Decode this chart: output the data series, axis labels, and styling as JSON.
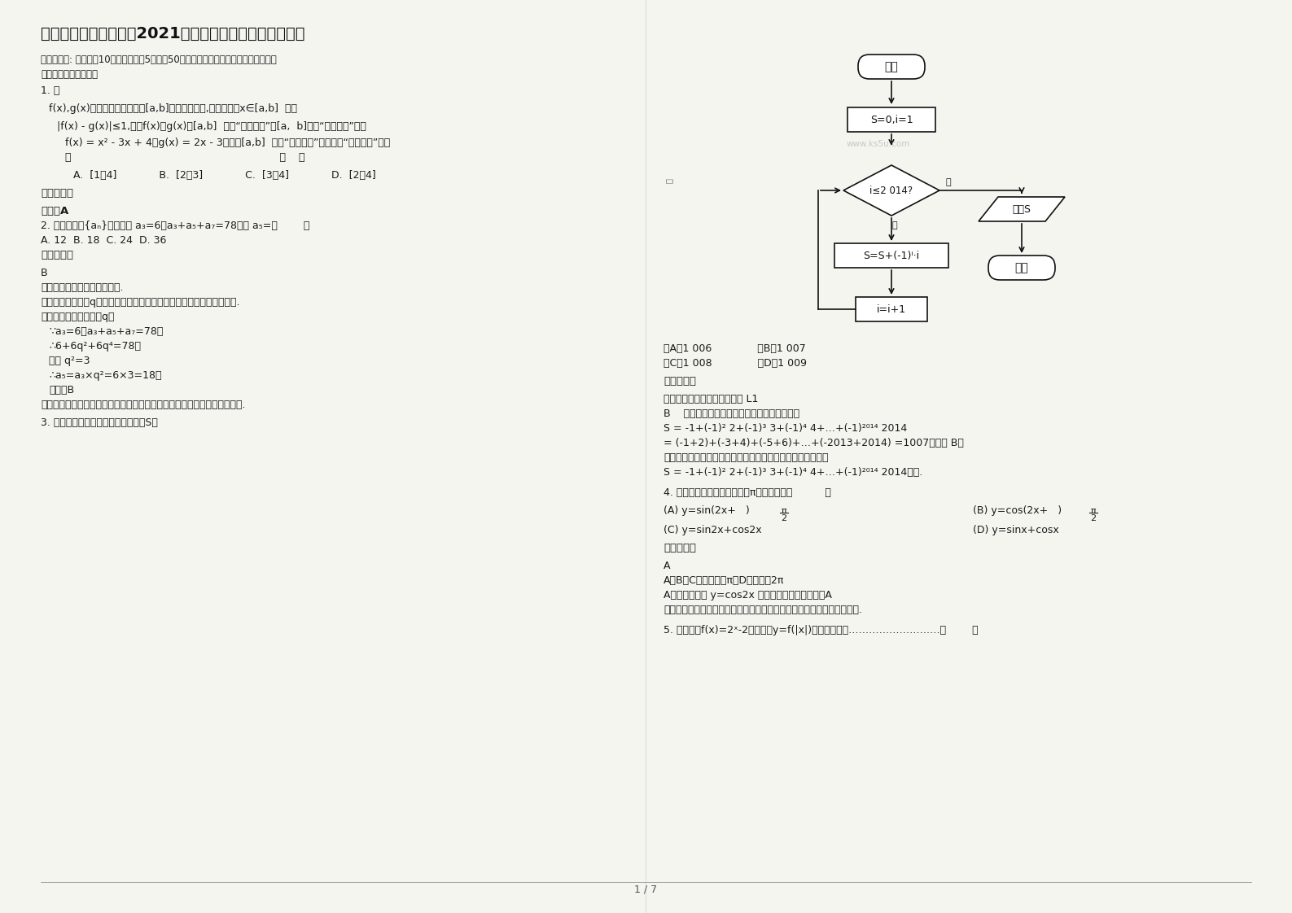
{
  "title": "四川省阿坝市藏文中学2021年高三数学文模拟试题含解析",
  "background_color": "#f5f5f0",
  "text_color": "#1a1a1a",
  "page_num": "1 / 7",
  "watermark": "www.ks5u.com",
  "section1_line1": "一、选择题: 本大题共10小题，每小题5分，共50分。在每小题给出的四个选项中，只有",
  "section1_line2": "是一个符合题目要求的",
  "q1_text": "1. 设",
  "q1_body": "f(x),g(x)是定义在同一个区间[a,b]上的两个函数,若对任意的x∈[a,b]  都有",
  "q1_cond1": "|f(x) - g(x)|≤1,则称f(x)与g(x)在[a,b]  上是“密切函数”，[a,  b]称为“密切区间”。设",
  "q1_func1": "f(x) = x² - 3x + 4与g(x) = 2x - 3在区间[a,b]  上是“密切函数”，则它的“密切区间”可能",
  "q1_func2": "是                                                                （    ）",
  "q1_choices": "A.  [1，4]             B.  [2，3]             C.  [3，4]             D.  [2，4]",
  "ref_ans": "参考答案：",
  "q1_ans": "答案：A",
  "q2_text": "2. 在等比数列{aₙ}中，已知 a₃=6，a₃+a₅+a₇=78，则 a₅=（        ）",
  "q2_choices": "A. 12  B. 18  C. 24  D. 36",
  "ref_ans2": "参考答案：",
  "q2_ans": "B",
  "q2_explain1": "【考点】等比数列的通项公式.",
  "q2_explain2": "【分析】设公比为q，由题意求出公比，再根据等比数列的性质即可求出.",
  "q2_explain3": "【解答】解：设公比为q，",
  "q2_explain4": "∵a₃=6，a₃+a₅+a₇=78，",
  "q2_explain5": "∴6+6q²+6q⁴=78，",
  "q2_explain6": "解得 q²=3",
  "q2_explain7": "∴a₅=a₃×q²=6×3=18，",
  "q2_explain8": "故选：B",
  "q2_explain9": "【点评】本题考查了等比数列的性质，考查了学生的计算能力，属于基础题.",
  "q3_text": "3. 执行如图所示的程序框图，输出的S为",
  "q3_choices_row1": "（A）1 006              （B）1 007",
  "q3_choices_row2": "（C）1 008              （D）1 009",
  "ref_ans3": "参考答案：",
  "q3_explain1": "【知识点】算法与程序框图。 L1",
  "q3_explain2": "B    解析：根据程序框图得执行的结果是计算：",
  "q3_formula1": "S = -1+(-1)² 2+(-1)³ 3+(-1)⁴ 4+…+(-1)²⁰¹⁴ 2014",
  "q3_formula2": "= (-1+2)+(-3+4)+(-5+6)+…+(-2013+2014) =1007，故选 B。",
  "q3_explain3": "【思路探索】根据程序框图描述的意义，得其运行结果是计算",
  "q3_formula3": "S = -1+(-1)² 2+(-1)³ 3+(-1)⁴ 4+…+(-1)²⁰¹⁴ 2014的值.",
  "q4_text": "4. 下列函数中，最小正周期为π的偶函数是（          ）",
  "q4_A": "(A) y=sin(2x+   )",
  "q4_B": "(B) y=cos(2x+   )",
  "q4_C": "(C) y=sin2x+cos2x",
  "q4_D": "(D) y=sinx+cosx",
  "q4_pi_label": "π",
  "q4_half_label": "2",
  "ref_ans4": "参考答案：",
  "q4_ans": "A",
  "q4_explain1": "A、B、C的周期都是π，D的周期是2π",
  "q4_explain2": "A选项化简后为 y=cos2x 是偶函数，故正确答案为A",
  "q4_explain3": "【考点】三角函数的基本概念和性质，函数的周期性和奇偶性，诱导公式.",
  "q5_text": "5. 已知函数f(x)=2ˣ-2，则函数y=f(|x|)的图像可能是………………………（        ）"
}
